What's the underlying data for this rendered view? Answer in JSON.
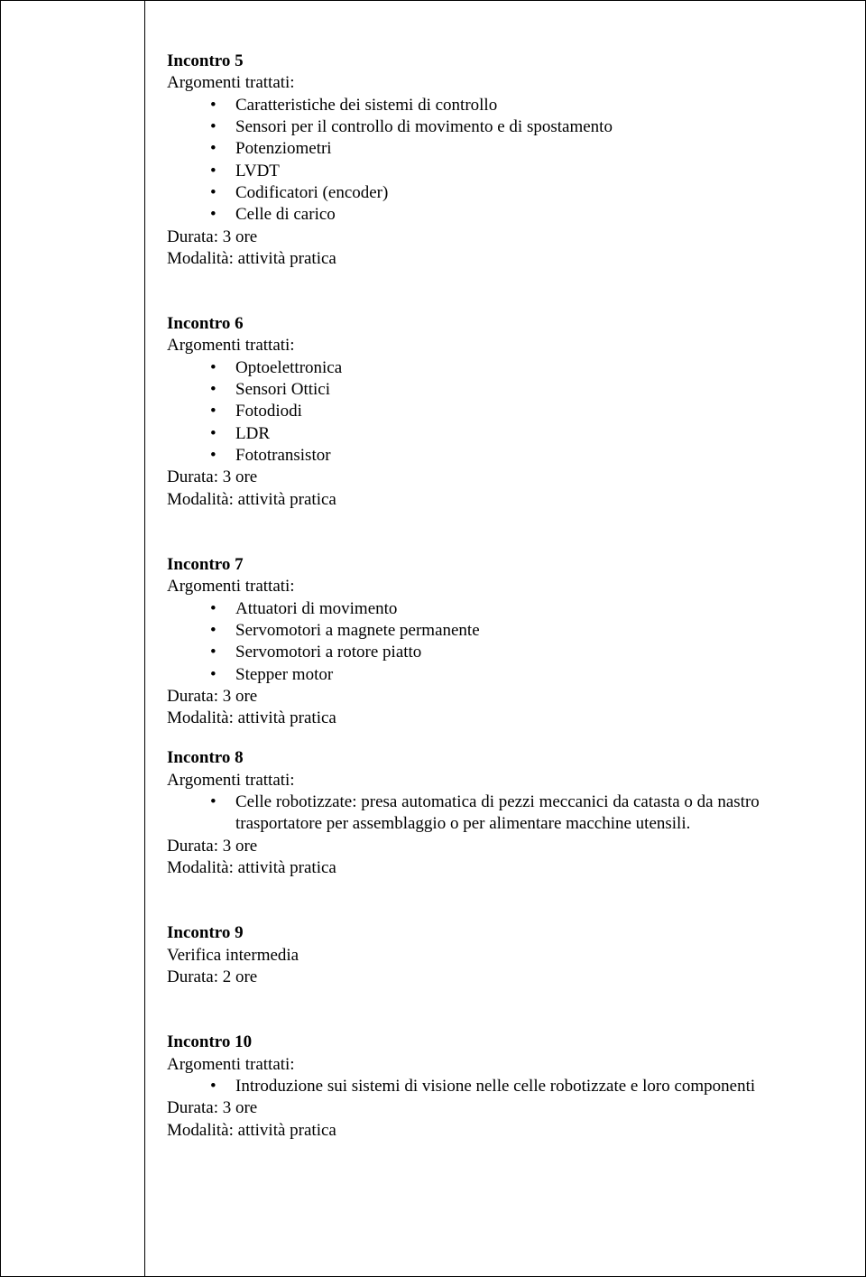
{
  "labels": {
    "argomenti": "Argomenti trattati:",
    "durata_prefix": "Durata: ",
    "modalita_prefix": "Modalità: "
  },
  "sections": [
    {
      "title": "Incontro 5",
      "has_argomenti": true,
      "bullets": [
        "Caratteristiche dei sistemi di controllo",
        "Sensori per il controllo di movimento e di spostamento",
        "Potenziometri",
        "LVDT",
        "Codificatori (encoder)",
        "Celle di carico"
      ],
      "durata": "3 ore",
      "modalita": "attività pratica",
      "extra_lines": [],
      "tight": false
    },
    {
      "title": "Incontro 6",
      "has_argomenti": true,
      "bullets": [
        "Optoelettronica",
        "Sensori  Ottici",
        "Fotodiodi",
        "LDR",
        "Fototransistor"
      ],
      "durata": "3 ore",
      "modalita": "attività pratica",
      "extra_lines": [],
      "tight": false
    },
    {
      "title": "Incontro 7",
      "has_argomenti": true,
      "bullets": [
        "Attuatori di movimento",
        "Servomotori a magnete permanente",
        "Servomotori a rotore piatto",
        "Stepper motor"
      ],
      "durata": "3 ore",
      "modalita": "attività pratica",
      "extra_lines": [],
      "tight": true
    },
    {
      "title": "Incontro 8",
      "has_argomenti": true,
      "bullets": [
        "Celle robotizzate: presa automatica di pezzi meccanici da catasta o da nastro trasportatore per assemblaggio o per alimentare macchine utensili."
      ],
      "durata": "3 ore",
      "modalita": "attività pratica",
      "extra_lines": [],
      "tight": false
    },
    {
      "title": "Incontro 9",
      "has_argomenti": false,
      "bullets": [],
      "extra_lines": [
        "Verifica intermedia"
      ],
      "durata": "2 ore",
      "modalita": null,
      "tight": false
    },
    {
      "title": "Incontro 10",
      "has_argomenti": true,
      "bullets": [
        "Introduzione sui sistemi di visione nelle celle robotizzate e loro componenti"
      ],
      "durata": "3 ore",
      "modalita": "attività pratica",
      "extra_lines": [],
      "tight": false
    }
  ]
}
